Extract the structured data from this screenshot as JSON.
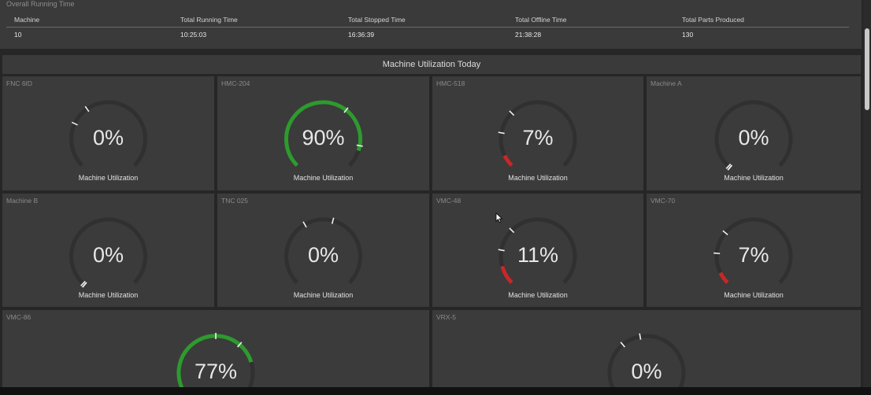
{
  "summary": {
    "title": "Overall Running Time",
    "headers": [
      "Machine",
      "Total Running Time",
      "Total Stopped Time",
      "Total Offline Time",
      "Total Parts Produced"
    ],
    "values": [
      "10",
      "10:25:03",
      "16:36:39",
      "21:38:28",
      "130"
    ]
  },
  "section_title": "Machine Utilization Today",
  "gauge_label": "Machine Utilization",
  "colors": {
    "good": "#2e9a2e",
    "low": "#c62828",
    "track": "#303030",
    "panel": "#3b3b3b"
  },
  "machines": [
    {
      "name": "FNC 6ID",
      "value": "0%",
      "fraction": 0.0
    },
    {
      "name": "HMC-204",
      "value": "90%",
      "fraction": 0.9
    },
    {
      "name": "HMC-518",
      "value": "7%",
      "fraction": 0.07
    },
    {
      "name": "Machine A",
      "value": "0%",
      "fraction": 0.0
    },
    {
      "name": "Machine B",
      "value": "0%",
      "fraction": 0.0
    },
    {
      "name": "TNC 025",
      "value": "0%",
      "fraction": 0.0
    },
    {
      "name": "VMC-48",
      "value": "11%",
      "fraction": 0.11
    },
    {
      "name": "VMC-70",
      "value": "7%",
      "fraction": 0.07
    },
    {
      "name": "VMC-86",
      "value": "77%",
      "fraction": 0.77
    },
    {
      "name": "VRX-5",
      "value": "0%",
      "fraction": 0.0
    }
  ]
}
